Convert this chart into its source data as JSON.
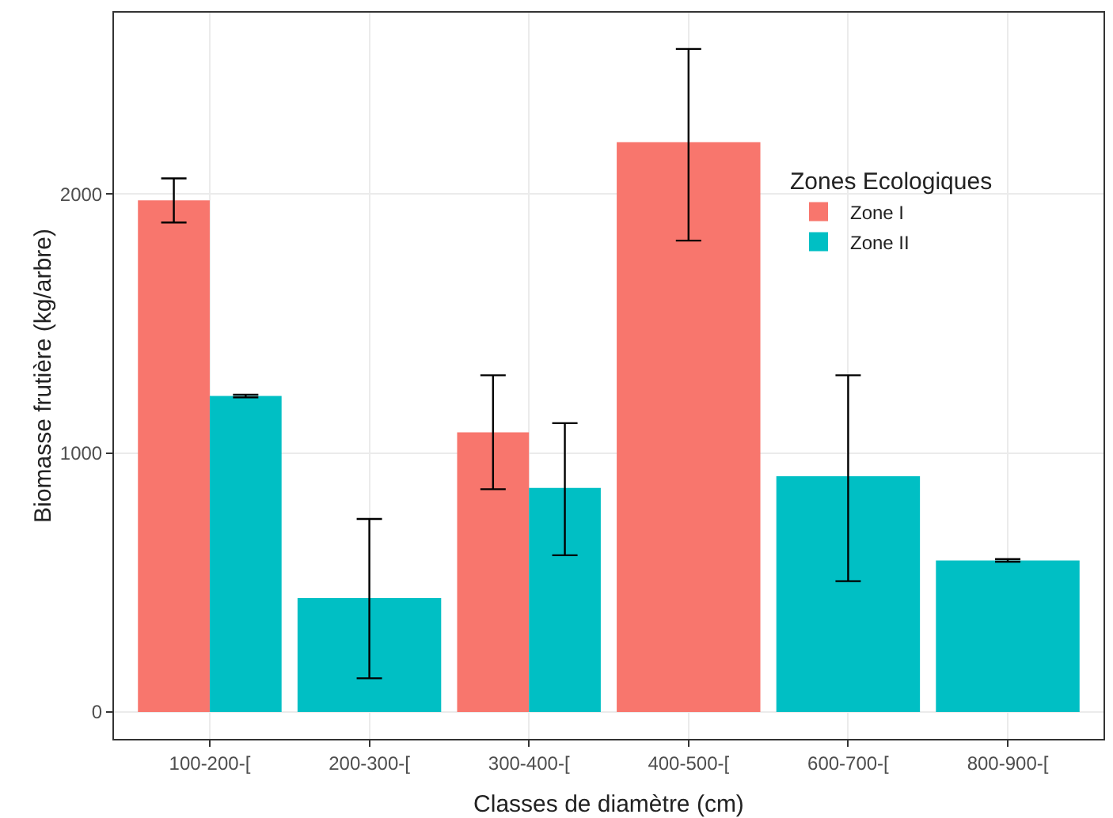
{
  "chart_data": {
    "type": "bar",
    "xlabel": "Classes de diamètre (cm)",
    "ylabel": "Biomasse frutière (kg/arbre)",
    "legend_title": "Zones Ecologiques",
    "categories": [
      "100-200-[",
      "200-300-[",
      "300-400-[",
      "400-500-[",
      "600-700-[",
      "800-900-["
    ],
    "series": [
      {
        "name": "Zone I",
        "color": "#f8766d",
        "values": [
          1975,
          null,
          1080,
          2200,
          null,
          null
        ],
        "errors": [
          [
            1890,
            2060
          ],
          null,
          [
            860,
            1300
          ],
          [
            1820,
            2560
          ],
          null,
          null
        ]
      },
      {
        "name": "Zone II",
        "color": "#00bfc4",
        "values": [
          1220,
          440,
          865,
          null,
          910,
          585
        ],
        "errors": [
          [
            1215,
            1225
          ],
          [
            130,
            745
          ],
          [
            605,
            1115
          ],
          null,
          [
            505,
            1300
          ],
          [
            580,
            590
          ]
        ]
      }
    ],
    "ylim": [
      -104,
      2700
    ],
    "yticks": [
      0,
      1000,
      2000
    ],
    "grid": true,
    "legend": "top right"
  }
}
